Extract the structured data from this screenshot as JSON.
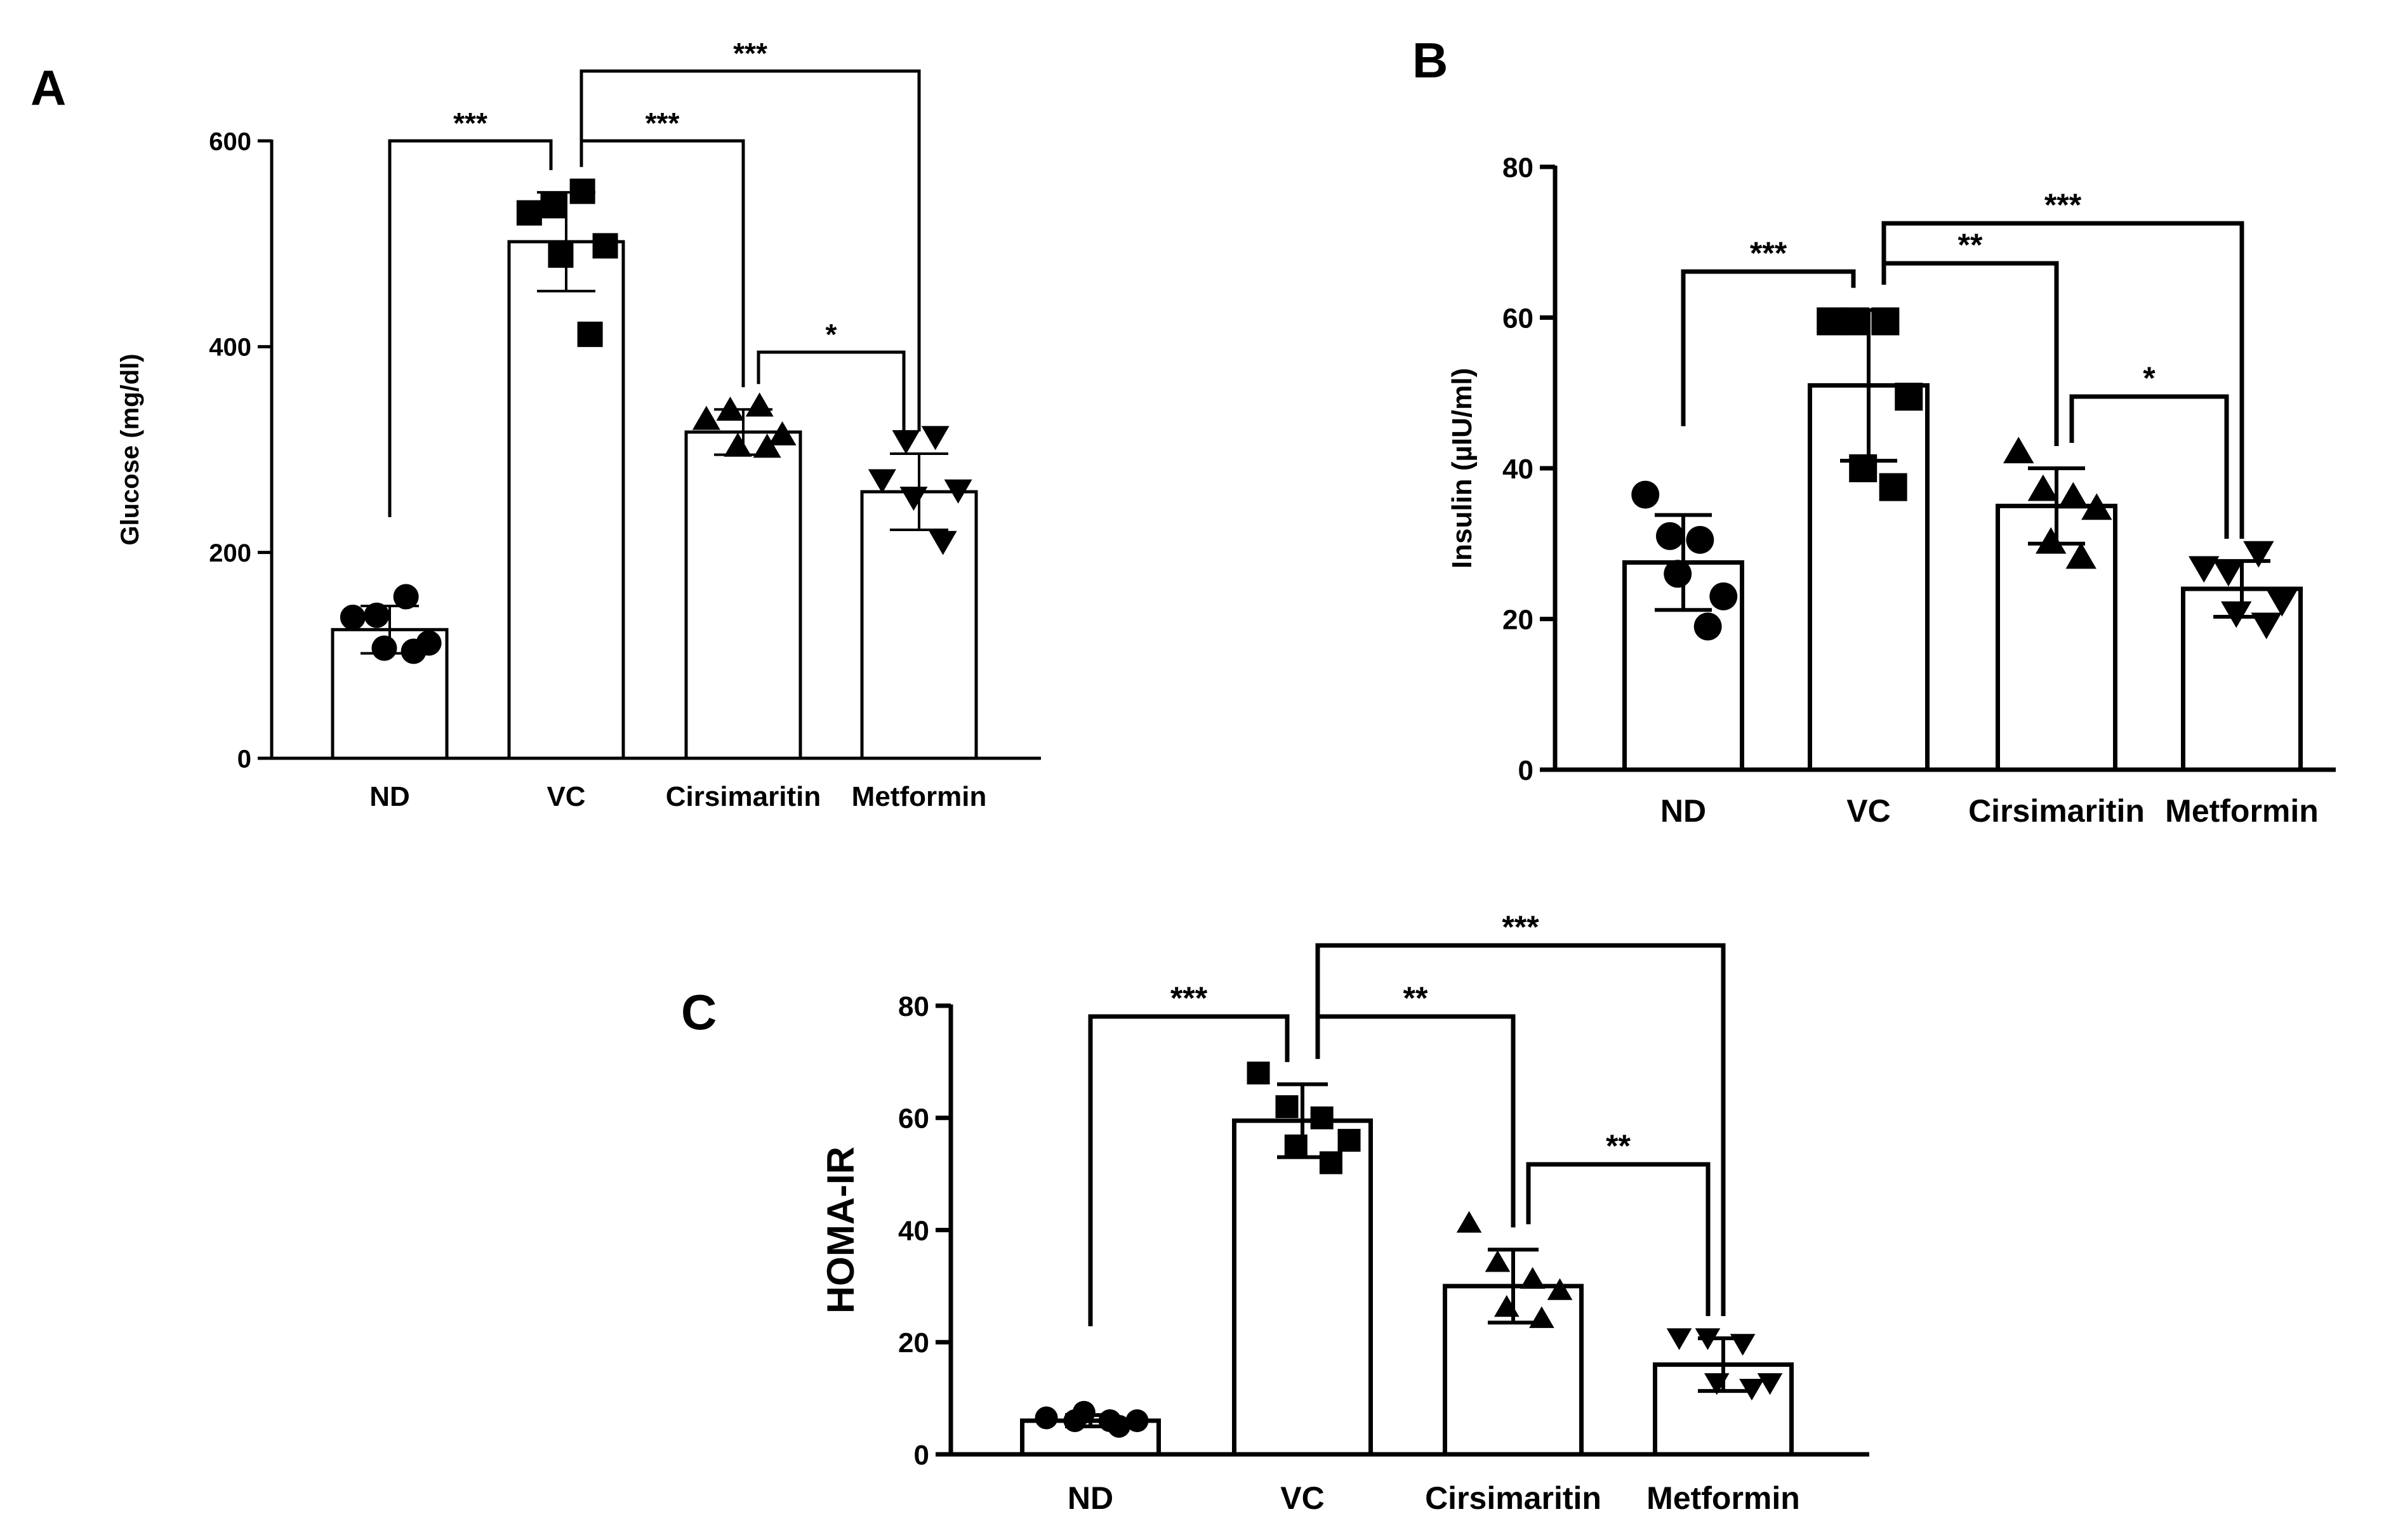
{
  "colors": {
    "ink": "#000000",
    "bar_fill": "#ffffff",
    "background": "#ffffff"
  },
  "chart_data": [
    {
      "type": "bar",
      "panel_label": "A",
      "title": "",
      "xlabel": "",
      "ylabel": "Glucose (mg/dl)",
      "ylim": [
        0,
        600
      ],
      "yticks": [
        "0",
        "200",
        "400",
        "600"
      ],
      "categories": [
        "ND",
        "VC",
        "Cirsimaritin",
        "Metformin"
      ],
      "values": [
        125,
        502,
        317,
        259
      ],
      "errors": [
        23,
        48,
        22,
        37
      ],
      "markers": [
        "circle",
        "square",
        "triangle-up",
        "triangle-down"
      ],
      "points": [
        [
          137,
          139,
          157,
          112,
          107,
          104
        ],
        [
          530,
          537,
          551,
          498,
          489,
          412
        ],
        [
          328,
          337,
          341,
          313,
          302,
          301
        ],
        [
          272,
          310,
          314,
          262,
          255,
          212
        ]
      ],
      "comparisons": [
        {
          "from": "ND",
          "to": "VC",
          "label": "***"
        },
        {
          "from": "VC",
          "to": "Cirsimaritin",
          "label": "***"
        },
        {
          "from": "VC",
          "to": "Metformin",
          "label": "***"
        },
        {
          "from": "Cirsimaritin",
          "to": "Metformin",
          "label": "*"
        }
      ]
    },
    {
      "type": "bar",
      "panel_label": "B",
      "title": "",
      "xlabel": "",
      "ylabel": "Insulin (µIU/ml)",
      "ylim": [
        0,
        80
      ],
      "yticks": [
        "0",
        "20",
        "40",
        "60",
        "80"
      ],
      "categories": [
        "ND",
        "VC",
        "Cirsimaritin",
        "Metformin"
      ],
      "values": [
        27.5,
        51,
        35,
        24
      ],
      "errors": [
        6.3,
        10,
        5,
        3.7
      ],
      "markers": [
        "circle",
        "square",
        "triangle-up",
        "triangle-down"
      ],
      "points": [
        [
          36.5,
          31,
          30.5,
          23,
          26,
          19
        ],
        [
          59.5,
          59.5,
          59.5,
          49.5,
          40,
          37.5
        ],
        [
          42,
          37,
          36,
          34.5,
          30,
          28
        ],
        [
          27,
          26.5,
          29,
          22.5,
          21,
          19.5
        ]
      ],
      "comparisons": [
        {
          "from": "ND",
          "to": "VC",
          "label": "***"
        },
        {
          "from": "VC",
          "to": "Cirsimaritin",
          "label": "**"
        },
        {
          "from": "VC",
          "to": "Metformin",
          "label": "***"
        },
        {
          "from": "Cirsimaritin",
          "to": "Metformin",
          "label": "*"
        }
      ]
    },
    {
      "type": "bar",
      "panel_label": "C",
      "title": "",
      "xlabel": "",
      "ylabel": "HOMA-IR",
      "ylim": [
        0,
        80
      ],
      "yticks": [
        "0",
        "20",
        "40",
        "60",
        "80"
      ],
      "categories": [
        "ND",
        "VC",
        "Cirsimaritin",
        "Metformin"
      ],
      "values": [
        6,
        59.5,
        30,
        16
      ],
      "errors": [
        1,
        6.5,
        6.5,
        4.7
      ],
      "markers": [
        "circle",
        "square",
        "triangle-up",
        "triangle-down"
      ],
      "points": [
        [
          6.5,
          6,
          6,
          6,
          7.5,
          5
        ],
        [
          68,
          62,
          60,
          56,
          55,
          52
        ],
        [
          41,
          34,
          31,
          29,
          26,
          24
        ],
        [
          21,
          21,
          20,
          13,
          13,
          12
        ]
      ],
      "comparisons": [
        {
          "from": "ND",
          "to": "VC",
          "label": "***"
        },
        {
          "from": "VC",
          "to": "Cirsimaritin",
          "label": "**"
        },
        {
          "from": "VC",
          "to": "Metformin",
          "label": "***"
        },
        {
          "from": "Cirsimaritin",
          "to": "Metformin",
          "label": "**"
        }
      ]
    }
  ]
}
